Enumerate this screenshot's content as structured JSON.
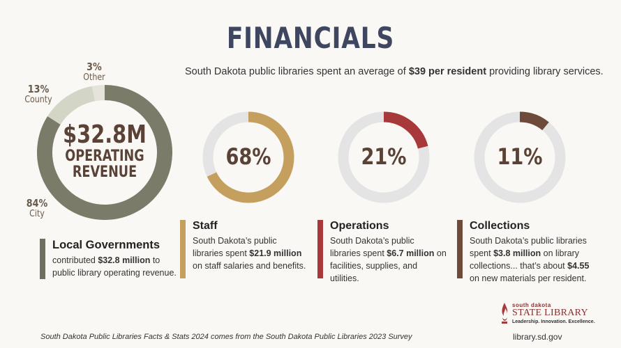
{
  "header": {
    "title": "FINANCIALS",
    "subtitle_pre": "South Dakota public libraries spent an average of ",
    "subtitle_bold": "$39 per resident",
    "subtitle_post": " providing library services."
  },
  "chart_data": [
    {
      "type": "pie",
      "categories": [
        "City",
        "County",
        "Other"
      ],
      "values": [
        84,
        13,
        3
      ],
      "colors": [
        "#7a7b68",
        "#d3d5c6",
        "#e6e3da"
      ],
      "center_value": "$32.8M",
      "center_label_1": "OPERATING",
      "center_label_2": "REVENUE"
    },
    {
      "type": "pie",
      "categories": [
        "Staff"
      ],
      "values": [
        68
      ],
      "color": "#c59f5e",
      "track_color": "#e4e4e4",
      "display": "68%"
    },
    {
      "type": "pie",
      "categories": [
        "Operations"
      ],
      "values": [
        21
      ],
      "color": "#a8393a",
      "track_color": "#e4e4e4",
      "display": "21%"
    },
    {
      "type": "pie",
      "categories": [
        "Collections"
      ],
      "values": [
        11
      ],
      "color": "#6e4a3a",
      "track_color": "#e4e4e4",
      "display": "11%"
    }
  ],
  "labels": {
    "other_pct": "3%",
    "other": "Other",
    "county_pct": "13%",
    "county": "County",
    "city_pct": "84%",
    "city": "City"
  },
  "cards": {
    "local": {
      "title": "Local Governments",
      "t1": "contributed ",
      "b1": "$32.8 million",
      "t2": " to public library operating revenue.",
      "color": "#6f7060"
    },
    "staff": {
      "title": "Staff",
      "t1": "South Dakota’s public libraries spent ",
      "b1": "$21.9 million",
      "t2": " on staff salaries and benefits.",
      "color": "#c59f5e"
    },
    "ops": {
      "title": "Operations",
      "t1": "South Dakota’s public libraries spent ",
      "b1": "$6.7 million",
      "t2": " on facilities, supplies, and utilities.",
      "color": "#a8393a"
    },
    "coll": {
      "title": "Collections",
      "t1": "South Dakota’s public libraries spent ",
      "b1": "$3.8 million",
      "t2": " on library collections... that’s about ",
      "b2": "$4.55",
      "t3": " on new materials per resident.",
      "color": "#6e4a3a"
    }
  },
  "logo": {
    "top": "south dakota",
    "mid": "STATE LIBRARY",
    "bottom": "Leadership. Innovation. Excellence."
  },
  "footer": {
    "note": "South Dakota Public Libraries Facts & Stats 2024 comes from the South Dakota Public Libraries 2023 Survey",
    "url": "library.sd.gov"
  }
}
